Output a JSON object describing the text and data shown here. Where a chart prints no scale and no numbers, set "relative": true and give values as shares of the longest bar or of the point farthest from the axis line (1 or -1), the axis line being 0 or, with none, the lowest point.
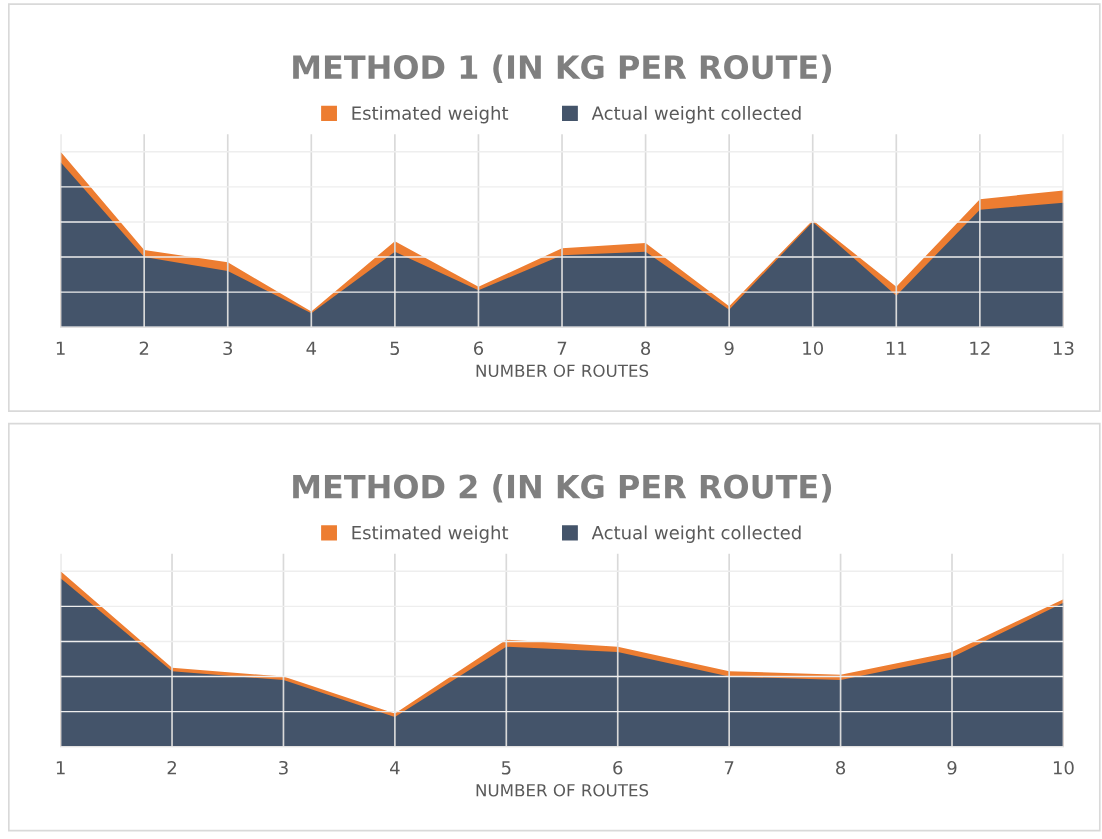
{
  "chart_data": [
    {
      "type": "area",
      "title": "METHOD 1 (IN KG PER ROUTE)",
      "xlabel": "NUMBER OF ROUTES",
      "categories": [
        "1",
        "2",
        "3",
        "4",
        "5",
        "6",
        "7",
        "8",
        "9",
        "10",
        "11",
        "12",
        "13"
      ],
      "relative": true,
      "grid": true,
      "legend": "top",
      "tick_labels": "x",
      "series": [
        {
          "name": "Estimated weight",
          "color": "#ed7d31",
          "values": [
            1,
            0.44,
            0.37,
            0.09,
            0.49,
            0.23,
            0.45,
            0.48,
            0.12,
            0.61,
            0.23,
            0.73,
            0.78
          ]
        },
        {
          "name": "Actual weight collected",
          "color": "#44546a",
          "values": [
            0.94,
            0.4,
            0.32,
            0.08,
            0.43,
            0.21,
            0.41,
            0.43,
            0.1,
            0.6,
            0.18,
            0.67,
            0.71
          ]
        }
      ]
    },
    {
      "type": "area",
      "title": "METHOD 2 (IN KG PER ROUTE)",
      "xlabel": "NUMBER OF ROUTES",
      "categories": [
        "1",
        "2",
        "3",
        "4",
        "5",
        "6",
        "7",
        "8",
        "9",
        "10"
      ],
      "relative": true,
      "grid": true,
      "legend": "top",
      "tick_labels": "x",
      "series": [
        {
          "name": "Estimated weight",
          "color": "#ed7d31",
          "values": [
            1,
            0.45,
            0.4,
            0.19,
            0.61,
            0.57,
            0.43,
            0.41,
            0.54,
            0.84
          ]
        },
        {
          "name": "Actual weight collected",
          "color": "#44546a",
          "values": [
            0.96,
            0.43,
            0.38,
            0.17,
            0.57,
            0.54,
            0.4,
            0.38,
            0.51,
            0.82
          ]
        }
      ]
    }
  ]
}
